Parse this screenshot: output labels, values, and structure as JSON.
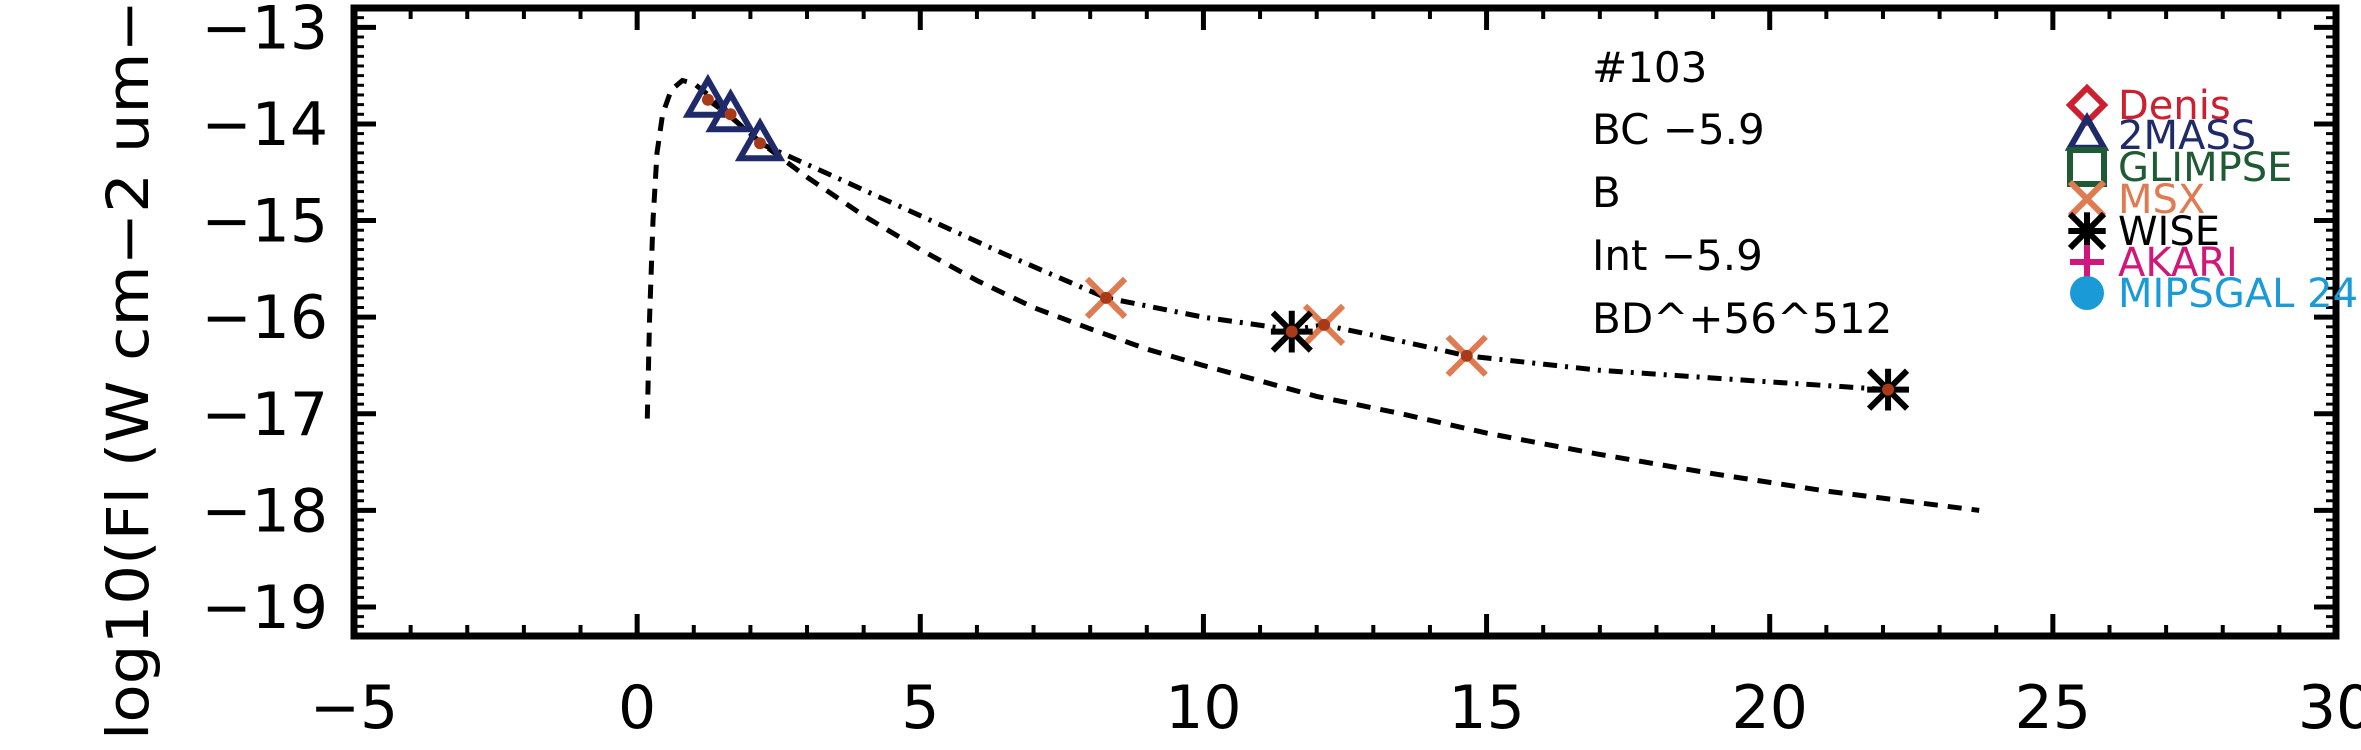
{
  "chart_data": {
    "type": "scatter",
    "title": "",
    "ylabel": "log10(Fl (W cm−2 um−",
    "xlabel": "",
    "xlim": [
      -5,
      30
    ],
    "ylim": [
      -19.3,
      -12.8
    ],
    "xticks": [
      -5,
      0,
      5,
      10,
      15,
      20,
      25,
      30
    ],
    "xtick_labels": [
      "−5",
      "0",
      "5",
      "10",
      "15",
      "20",
      "25",
      "30"
    ],
    "yticks": [
      -13,
      -14,
      -15,
      -16,
      -17,
      -18,
      -19
    ],
    "ytick_labels": [
      "−13",
      "−14",
      "−15",
      "−16",
      "−17",
      "−18",
      "−19"
    ],
    "annotations": [
      "#103",
      "BC  −5.9",
      "B",
      "Int  −5.9",
      "BD^+56^512"
    ],
    "legend": {
      "placement": "right",
      "entries": [
        {
          "label": "Denis",
          "color": "#cc1f2f",
          "marker": "diamond"
        },
        {
          "label": "2MASS",
          "color": "#1f2a6b",
          "marker": "triangle"
        },
        {
          "label": "GLIMPSE",
          "color": "#1e5a33",
          "marker": "square"
        },
        {
          "label": "MSX",
          "color": "#e07a50",
          "marker": "x"
        },
        {
          "label": "WISE",
          "color": "#000000",
          "marker": "asterisk"
        },
        {
          "label": "AKARI",
          "color": "#d0187a",
          "marker": "plus"
        },
        {
          "label": "MIPSGAL 24",
          "color": "#1a9ad6",
          "marker": "circle"
        }
      ]
    },
    "series": [
      {
        "type": "scatter",
        "marker": "triangle",
        "color": "#1f2a6b",
        "points": [
          [
            1.25,
            -13.75
          ],
          [
            1.65,
            -13.9
          ],
          [
            2.17,
            -14.2
          ]
        ]
      },
      {
        "type": "scatter",
        "marker": "x",
        "color": "#e07a50",
        "points": [
          [
            8.28,
            -15.8
          ],
          [
            12.13,
            -16.08
          ],
          [
            14.65,
            -16.4
          ]
        ]
      },
      {
        "type": "scatter",
        "marker": "asterisk",
        "color": "#000000",
        "points": [
          [
            11.56,
            -16.15
          ],
          [
            22.09,
            -16.75
          ]
        ]
      },
      {
        "type": "scatter",
        "marker": "dot",
        "color": "#a83a1a",
        "points": [
          [
            1.25,
            -13.75
          ],
          [
            1.65,
            -13.9
          ],
          [
            2.17,
            -14.2
          ],
          [
            8.28,
            -15.8
          ],
          [
            11.56,
            -16.15
          ],
          [
            12.13,
            -16.08
          ],
          [
            14.65,
            -16.4
          ],
          [
            22.09,
            -16.75
          ]
        ]
      },
      {
        "type": "line",
        "style": "dash-dot",
        "color": "#000000",
        "points": [
          [
            1.25,
            -13.75
          ],
          [
            1.65,
            -13.92
          ],
          [
            2.17,
            -14.2
          ],
          [
            3.5,
            -14.55
          ],
          [
            5.0,
            -14.95
          ],
          [
            6.5,
            -15.35
          ],
          [
            8.28,
            -15.8
          ],
          [
            10.0,
            -16.0
          ],
          [
            11.56,
            -16.13
          ],
          [
            12.13,
            -16.08
          ],
          [
            13.5,
            -16.25
          ],
          [
            14.65,
            -16.4
          ],
          [
            17.0,
            -16.55
          ],
          [
            20.0,
            -16.67
          ],
          [
            22.09,
            -16.75
          ]
        ]
      },
      {
        "type": "line",
        "style": "dashed",
        "color": "#000000",
        "points": [
          [
            0.18,
            -17.05
          ],
          [
            0.22,
            -16.0
          ],
          [
            0.28,
            -15.0
          ],
          [
            0.35,
            -14.3
          ],
          [
            0.45,
            -13.9
          ],
          [
            0.6,
            -13.65
          ],
          [
            0.8,
            -13.55
          ],
          [
            1.0,
            -13.58
          ],
          [
            1.3,
            -13.72
          ],
          [
            1.7,
            -13.95
          ],
          [
            2.2,
            -14.2
          ],
          [
            3.0,
            -14.55
          ],
          [
            4.0,
            -14.95
          ],
          [
            5.0,
            -15.3
          ],
          [
            6.0,
            -15.62
          ],
          [
            7.0,
            -15.9
          ],
          [
            8.0,
            -16.12
          ],
          [
            9.0,
            -16.33
          ],
          [
            10.0,
            -16.5
          ],
          [
            11.0,
            -16.66
          ],
          [
            12.0,
            -16.82
          ],
          [
            13.5,
            -17.0
          ],
          [
            15.0,
            -17.2
          ],
          [
            17.0,
            -17.42
          ],
          [
            19.0,
            -17.62
          ],
          [
            21.0,
            -17.8
          ],
          [
            23.7,
            -18.0
          ]
        ]
      }
    ]
  }
}
